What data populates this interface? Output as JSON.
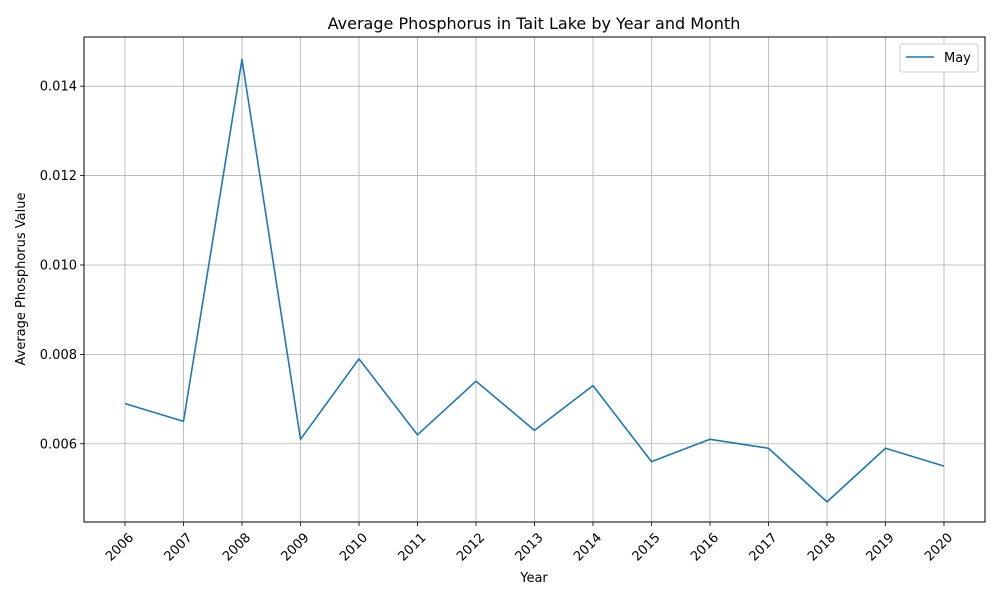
{
  "chart_data": {
    "type": "line",
    "title": "Average Phosphorus in Tait Lake by Year and Month",
    "xlabel": "Year",
    "ylabel": "Average Phosphorus Value",
    "categories": [
      "2006",
      "2007",
      "2008",
      "2009",
      "2010",
      "2011",
      "2012",
      "2013",
      "2014",
      "2015",
      "2016",
      "2017",
      "2018",
      "2019",
      "2020"
    ],
    "series": [
      {
        "name": "May",
        "color": "#1f77b4",
        "values": [
          0.0069,
          0.0065,
          0.0146,
          0.0061,
          0.0079,
          0.0062,
          0.0074,
          0.0063,
          0.0073,
          0.0056,
          0.0061,
          0.0059,
          0.0047,
          0.0059,
          0.0055
        ]
      }
    ],
    "yticks": [
      "0.006",
      "0.008",
      "0.010",
      "0.012",
      "0.014"
    ],
    "ylim": [
      0.00425,
      0.0151
    ],
    "grid": true,
    "legend_position": "top-right"
  }
}
